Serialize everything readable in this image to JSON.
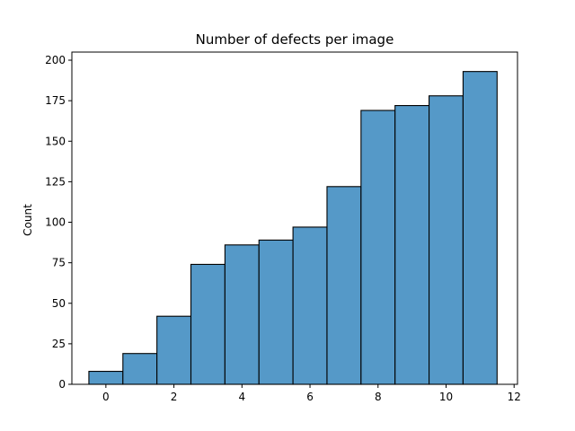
{
  "chart_data": {
    "type": "bar",
    "title": "Number of defects per image",
    "xlabel": "",
    "ylabel": "Count",
    "categories": [
      0,
      1,
      2,
      3,
      4,
      5,
      6,
      7,
      8,
      9,
      10,
      11
    ],
    "values": [
      8,
      19,
      42,
      74,
      86,
      89,
      97,
      122,
      169,
      172,
      178,
      193
    ],
    "xlim": [
      -1,
      12.1
    ],
    "ylim": [
      0,
      205
    ],
    "xticks": [
      0,
      2,
      4,
      6,
      8,
      10,
      12
    ],
    "yticks": [
      0,
      25,
      50,
      75,
      100,
      125,
      150,
      175,
      200
    ],
    "bar_color": "#5599c8",
    "edge_color": "#000000",
    "grid": false
  }
}
